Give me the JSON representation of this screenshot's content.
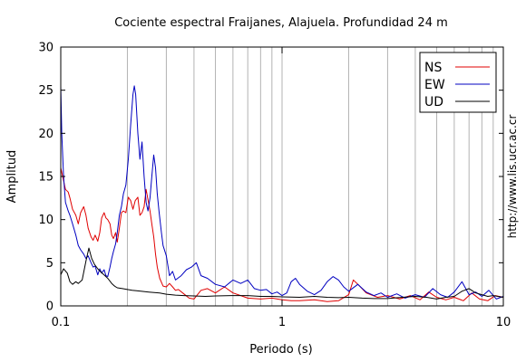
{
  "chart_data": {
    "type": "line",
    "title": "Cociente espectral Fraijanes, Alajuela. Profundidad 24 m",
    "xlabel": "Periodo (s)",
    "ylabel": "Amplitud",
    "x_scale": "log",
    "xlim": [
      0.1,
      10
    ],
    "ylim": [
      0,
      30
    ],
    "grid": "vertical",
    "legend_position": "top-right",
    "x_ticks": [
      {
        "value": 0.1,
        "label": "0.1"
      },
      {
        "value": 1,
        "label": "1"
      },
      {
        "value": 10,
        "label": "10"
      }
    ],
    "y_ticks": [
      {
        "value": 0,
        "label": "0"
      },
      {
        "value": 5,
        "label": "5"
      },
      {
        "value": 10,
        "label": "10"
      },
      {
        "value": 15,
        "label": "15"
      },
      {
        "value": 20,
        "label": "20"
      },
      {
        "value": 25,
        "label": "25"
      },
      {
        "value": 30,
        "label": "30"
      }
    ],
    "series": [
      {
        "name": "NS",
        "color": "#e00000",
        "points": [
          [
            0.1,
            16
          ],
          [
            0.102,
            15
          ],
          [
            0.105,
            13.5
          ],
          [
            0.108,
            13.2
          ],
          [
            0.11,
            12.5
          ],
          [
            0.113,
            11.2
          ],
          [
            0.117,
            10.5
          ],
          [
            0.12,
            9.5
          ],
          [
            0.123,
            10.8
          ],
          [
            0.127,
            11.5
          ],
          [
            0.13,
            10.5
          ],
          [
            0.133,
            9
          ],
          [
            0.137,
            8
          ],
          [
            0.14,
            7.6
          ],
          [
            0.143,
            8.2
          ],
          [
            0.147,
            7.5
          ],
          [
            0.15,
            8.5
          ],
          [
            0.153,
            10.2
          ],
          [
            0.157,
            10.8
          ],
          [
            0.16,
            10.2
          ],
          [
            0.163,
            10
          ],
          [
            0.167,
            9.5
          ],
          [
            0.17,
            8.2
          ],
          [
            0.173,
            7.8
          ],
          [
            0.177,
            8.5
          ],
          [
            0.18,
            7.4
          ],
          [
            0.184,
            9
          ],
          [
            0.188,
            10.8
          ],
          [
            0.192,
            11
          ],
          [
            0.197,
            10.8
          ],
          [
            0.202,
            12.6
          ],
          [
            0.207,
            12.2
          ],
          [
            0.212,
            11.2
          ],
          [
            0.217,
            12.2
          ],
          [
            0.223,
            12.6
          ],
          [
            0.228,
            10.5
          ],
          [
            0.233,
            10.8
          ],
          [
            0.238,
            11.5
          ],
          [
            0.243,
            13.5
          ],
          [
            0.248,
            12.3
          ],
          [
            0.253,
            11
          ],
          [
            0.258,
            9.5
          ],
          [
            0.263,
            8
          ],
          [
            0.268,
            6
          ],
          [
            0.273,
            4.5
          ],
          [
            0.28,
            3.2
          ],
          [
            0.29,
            2.3
          ],
          [
            0.3,
            2.2
          ],
          [
            0.31,
            2.6
          ],
          [
            0.32,
            2.2
          ],
          [
            0.33,
            1.8
          ],
          [
            0.34,
            1.9
          ],
          [
            0.36,
            1.4
          ],
          [
            0.38,
            0.9
          ],
          [
            0.4,
            0.8
          ],
          [
            0.43,
            1.8
          ],
          [
            0.46,
            2
          ],
          [
            0.5,
            1.5
          ],
          [
            0.55,
            2.2
          ],
          [
            0.6,
            1.5
          ],
          [
            0.65,
            1.2
          ],
          [
            0.7,
            0.9
          ],
          [
            0.8,
            0.8
          ],
          [
            0.9,
            0.9
          ],
          [
            1.0,
            0.7
          ],
          [
            1.1,
            0.6
          ],
          [
            1.2,
            0.6
          ],
          [
            1.4,
            0.7
          ],
          [
            1.6,
            0.5
          ],
          [
            1.8,
            0.6
          ],
          [
            2.0,
            1.3
          ],
          [
            2.1,
            3
          ],
          [
            2.2,
            2.5
          ],
          [
            2.4,
            1.5
          ],
          [
            2.7,
            1
          ],
          [
            3.0,
            1.2
          ],
          [
            3.4,
            0.8
          ],
          [
            3.8,
            1.2
          ],
          [
            4.2,
            0.7
          ],
          [
            4.6,
            1.6
          ],
          [
            5.0,
            1
          ],
          [
            5.5,
            0.7
          ],
          [
            6.0,
            1
          ],
          [
            6.6,
            0.6
          ],
          [
            7.2,
            1.5
          ],
          [
            7.8,
            0.8
          ],
          [
            8.5,
            0.6
          ],
          [
            9.2,
            1.2
          ],
          [
            10,
            1
          ]
        ]
      },
      {
        "name": "EW",
        "color": "#0000c0",
        "points": [
          [
            0.1,
            25.5
          ],
          [
            0.101,
            20
          ],
          [
            0.103,
            15
          ],
          [
            0.105,
            12
          ],
          [
            0.108,
            11
          ],
          [
            0.11,
            10.5
          ],
          [
            0.113,
            9.5
          ],
          [
            0.117,
            8.2
          ],
          [
            0.12,
            7
          ],
          [
            0.123,
            6.5
          ],
          [
            0.127,
            6
          ],
          [
            0.13,
            5.5
          ],
          [
            0.133,
            5.8
          ],
          [
            0.137,
            5
          ],
          [
            0.14,
            4.5
          ],
          [
            0.143,
            4.6
          ],
          [
            0.147,
            3.6
          ],
          [
            0.15,
            4.3
          ],
          [
            0.153,
            3.8
          ],
          [
            0.157,
            4.2
          ],
          [
            0.16,
            3.5
          ],
          [
            0.163,
            3.4
          ],
          [
            0.167,
            4.5
          ],
          [
            0.17,
            5.5
          ],
          [
            0.173,
            6.3
          ],
          [
            0.177,
            7.2
          ],
          [
            0.18,
            8.5
          ],
          [
            0.184,
            10.5
          ],
          [
            0.188,
            11.5
          ],
          [
            0.192,
            13
          ],
          [
            0.197,
            14
          ],
          [
            0.202,
            17
          ],
          [
            0.207,
            21
          ],
          [
            0.212,
            24.5
          ],
          [
            0.215,
            25.5
          ],
          [
            0.218,
            24.5
          ],
          [
            0.223,
            20
          ],
          [
            0.228,
            17
          ],
          [
            0.233,
            19
          ],
          [
            0.238,
            15
          ],
          [
            0.243,
            12
          ],
          [
            0.248,
            11
          ],
          [
            0.253,
            12.5
          ],
          [
            0.258,
            15
          ],
          [
            0.263,
            17.5
          ],
          [
            0.268,
            16
          ],
          [
            0.273,
            13
          ],
          [
            0.278,
            11
          ],
          [
            0.285,
            8.5
          ],
          [
            0.29,
            7
          ],
          [
            0.3,
            5.8
          ],
          [
            0.31,
            3.5
          ],
          [
            0.32,
            4
          ],
          [
            0.33,
            3
          ],
          [
            0.35,
            3.5
          ],
          [
            0.37,
            4.2
          ],
          [
            0.39,
            4.5
          ],
          [
            0.41,
            5
          ],
          [
            0.43,
            3.5
          ],
          [
            0.46,
            3.2
          ],
          [
            0.5,
            2.5
          ],
          [
            0.55,
            2.2
          ],
          [
            0.6,
            3
          ],
          [
            0.65,
            2.6
          ],
          [
            0.7,
            3
          ],
          [
            0.75,
            2
          ],
          [
            0.8,
            1.8
          ],
          [
            0.85,
            1.9
          ],
          [
            0.9,
            1.4
          ],
          [
            0.95,
            1.6
          ],
          [
            1.0,
            1.2
          ],
          [
            1.05,
            1.5
          ],
          [
            1.1,
            2.8
          ],
          [
            1.15,
            3.2
          ],
          [
            1.2,
            2.5
          ],
          [
            1.3,
            1.7
          ],
          [
            1.4,
            1.3
          ],
          [
            1.5,
            1.8
          ],
          [
            1.6,
            2.8
          ],
          [
            1.7,
            3.4
          ],
          [
            1.8,
            3
          ],
          [
            1.9,
            2.2
          ],
          [
            2.0,
            1.7
          ],
          [
            2.2,
            2.5
          ],
          [
            2.4,
            1.6
          ],
          [
            2.6,
            1.2
          ],
          [
            2.8,
            1.5
          ],
          [
            3.0,
            1
          ],
          [
            3.3,
            1.4
          ],
          [
            3.6,
            0.9
          ],
          [
            4.0,
            1.3
          ],
          [
            4.4,
            1
          ],
          [
            4.8,
            2
          ],
          [
            5.2,
            1.3
          ],
          [
            5.6,
            1
          ],
          [
            6.0,
            1.6
          ],
          [
            6.5,
            2.8
          ],
          [
            7.0,
            1.3
          ],
          [
            7.5,
            1.6
          ],
          [
            8.0,
            1.1
          ],
          [
            8.6,
            1.8
          ],
          [
            9.3,
            0.8
          ],
          [
            10,
            1.1
          ]
        ]
      },
      {
        "name": "UD",
        "color": "#000000",
        "points": [
          [
            0.1,
            3.6
          ],
          [
            0.103,
            4.3
          ],
          [
            0.107,
            3.8
          ],
          [
            0.11,
            2.8
          ],
          [
            0.113,
            2.5
          ],
          [
            0.117,
            2.8
          ],
          [
            0.12,
            2.6
          ],
          [
            0.125,
            3
          ],
          [
            0.13,
            5.2
          ],
          [
            0.134,
            6.7
          ],
          [
            0.138,
            5.5
          ],
          [
            0.142,
            4.8
          ],
          [
            0.147,
            4.3
          ],
          [
            0.152,
            3.9
          ],
          [
            0.157,
            3.6
          ],
          [
            0.163,
            3.2
          ],
          [
            0.17,
            2.6
          ],
          [
            0.175,
            2.3
          ],
          [
            0.18,
            2.1
          ],
          [
            0.19,
            2
          ],
          [
            0.2,
            1.9
          ],
          [
            0.21,
            1.8
          ],
          [
            0.22,
            1.75
          ],
          [
            0.23,
            1.7
          ],
          [
            0.25,
            1.6
          ],
          [
            0.28,
            1.5
          ],
          [
            0.3,
            1.35
          ],
          [
            0.33,
            1.25
          ],
          [
            0.36,
            1.2
          ],
          [
            0.4,
            1.15
          ],
          [
            0.45,
            1.1
          ],
          [
            0.5,
            1.15
          ],
          [
            0.6,
            1.2
          ],
          [
            0.7,
            1.2
          ],
          [
            0.8,
            1.1
          ],
          [
            0.9,
            1.1
          ],
          [
            1.0,
            1.05
          ],
          [
            1.2,
            1
          ],
          [
            1.4,
            1.1
          ],
          [
            1.6,
            1
          ],
          [
            1.8,
            0.95
          ],
          [
            2.0,
            1
          ],
          [
            2.3,
            0.9
          ],
          [
            2.6,
            0.85
          ],
          [
            3.0,
            0.85
          ],
          [
            3.5,
            1
          ],
          [
            4.0,
            1.1
          ],
          [
            4.5,
            1
          ],
          [
            5.0,
            0.8
          ],
          [
            5.5,
            1
          ],
          [
            6.0,
            1.1
          ],
          [
            6.5,
            1.7
          ],
          [
            7.0,
            2
          ],
          [
            7.5,
            1.5
          ],
          [
            8.0,
            1.3
          ],
          [
            8.5,
            1.1
          ],
          [
            9.0,
            1.2
          ],
          [
            10,
            1
          ]
        ]
      }
    ]
  },
  "watermark": "http://www.lis.ucr.ac.cr"
}
